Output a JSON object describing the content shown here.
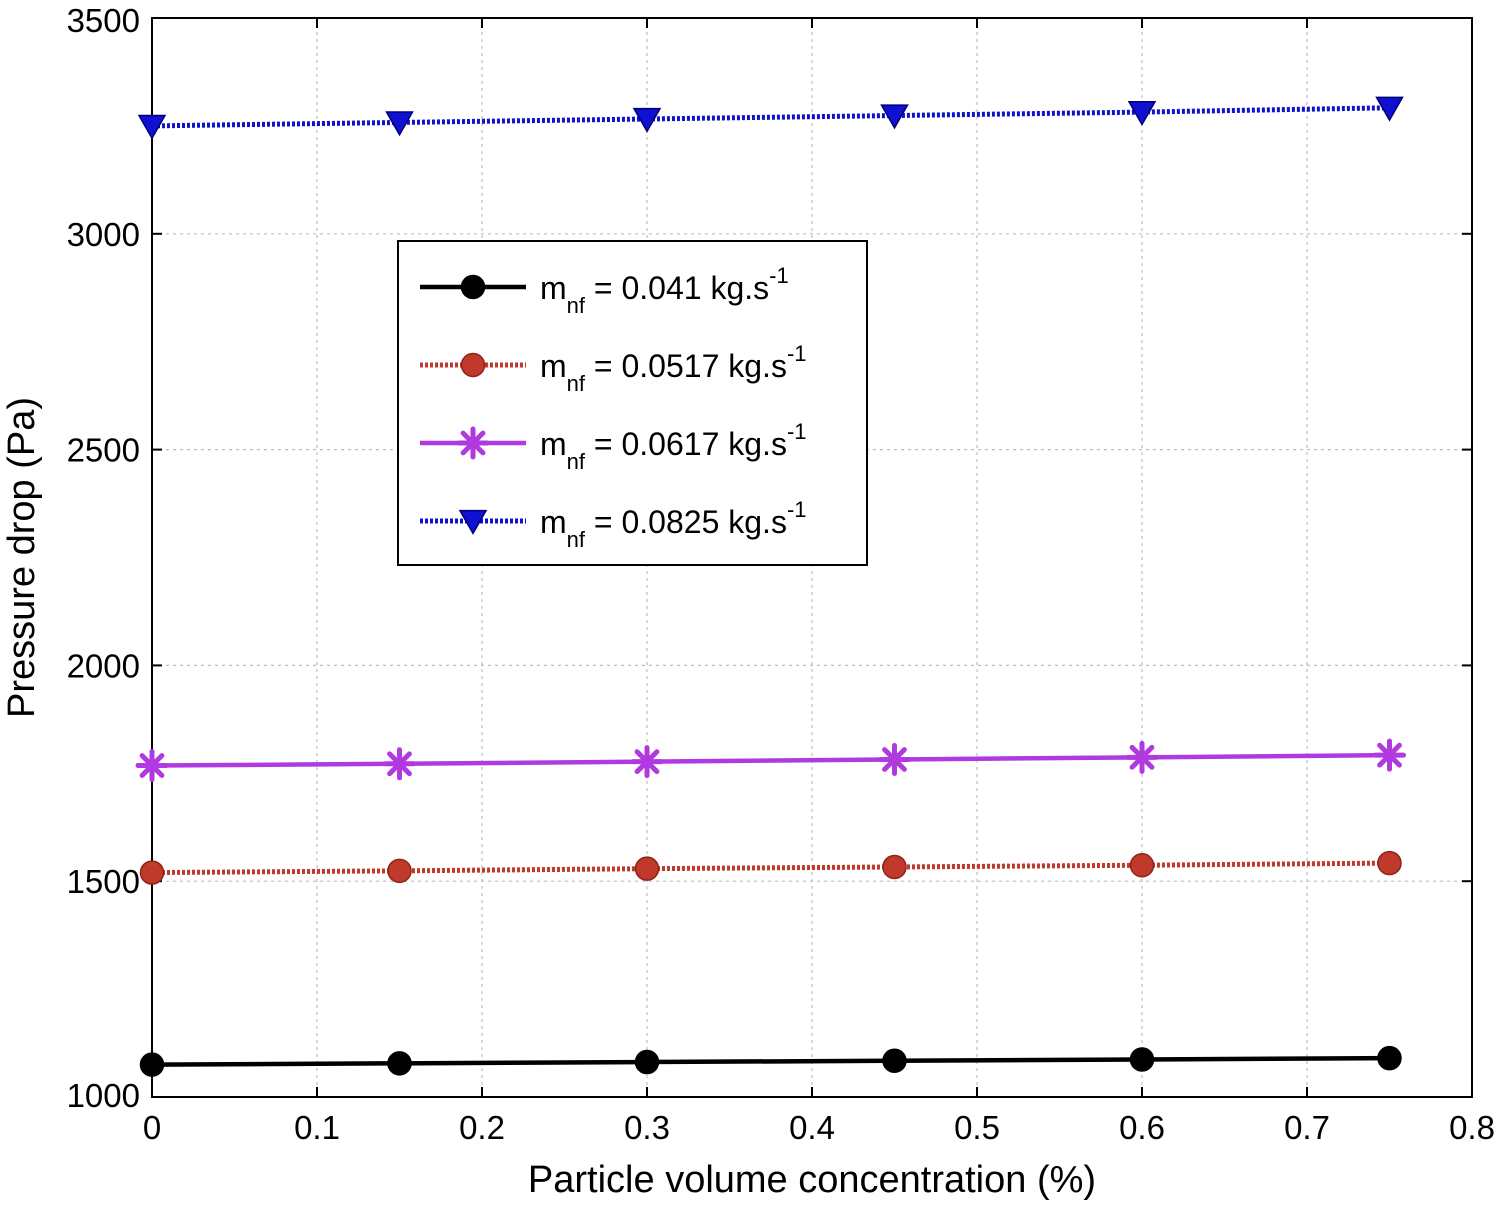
{
  "chart_data": {
    "type": "line",
    "xlabel": "Particle volume concentration (%)",
    "ylabel": "Pressure drop (Pa)",
    "xlim": [
      0,
      0.8
    ],
    "ylim": [
      1000,
      3500
    ],
    "x_ticks": [
      "0",
      "0.1",
      "0.2",
      "0.3",
      "0.4",
      "0.5",
      "0.6",
      "0.7",
      "0.8"
    ],
    "y_ticks": [
      "1000",
      "1500",
      "2000",
      "2500",
      "3000",
      "3500"
    ],
    "grid": true,
    "legend_position": "upper-left-center",
    "x": [
      0,
      0.15,
      0.3,
      0.45,
      0.6,
      0.75
    ],
    "series": [
      {
        "legend_main": "m",
        "legend_sub": "nf",
        "legend_rest": " = 0.041 kg.s",
        "legend_sup": "-1",
        "values": [
          1075,
          1078,
          1081,
          1084,
          1087,
          1090
        ],
        "color": "#000000",
        "line_style": "solid",
        "marker": "circle"
      },
      {
        "legend_main": "m",
        "legend_sub": "nf",
        "legend_rest": " = 0.0517 kg.s",
        "legend_sup": "-1",
        "values": [
          1520,
          1524,
          1529,
          1533,
          1537,
          1542
        ],
        "color": "#c0392b",
        "line_style": "dotted",
        "marker": "circle"
      },
      {
        "legend_main": "m",
        "legend_sub": "nf",
        "legend_rest": " = 0.0617 kg.s",
        "legend_sup": "-1",
        "values": [
          1768,
          1772,
          1777,
          1782,
          1787,
          1792
        ],
        "color": "#b03ae0",
        "line_style": "solid",
        "marker": "asterisk"
      },
      {
        "legend_main": "m",
        "legend_sub": "nf",
        "legend_rest": " = 0.0825 kg.s",
        "legend_sup": "-1",
        "values": [
          3250,
          3258,
          3266,
          3274,
          3282,
          3292
        ],
        "color": "#1010d0",
        "line_style": "dotted",
        "marker": "triangle-down"
      }
    ]
  }
}
